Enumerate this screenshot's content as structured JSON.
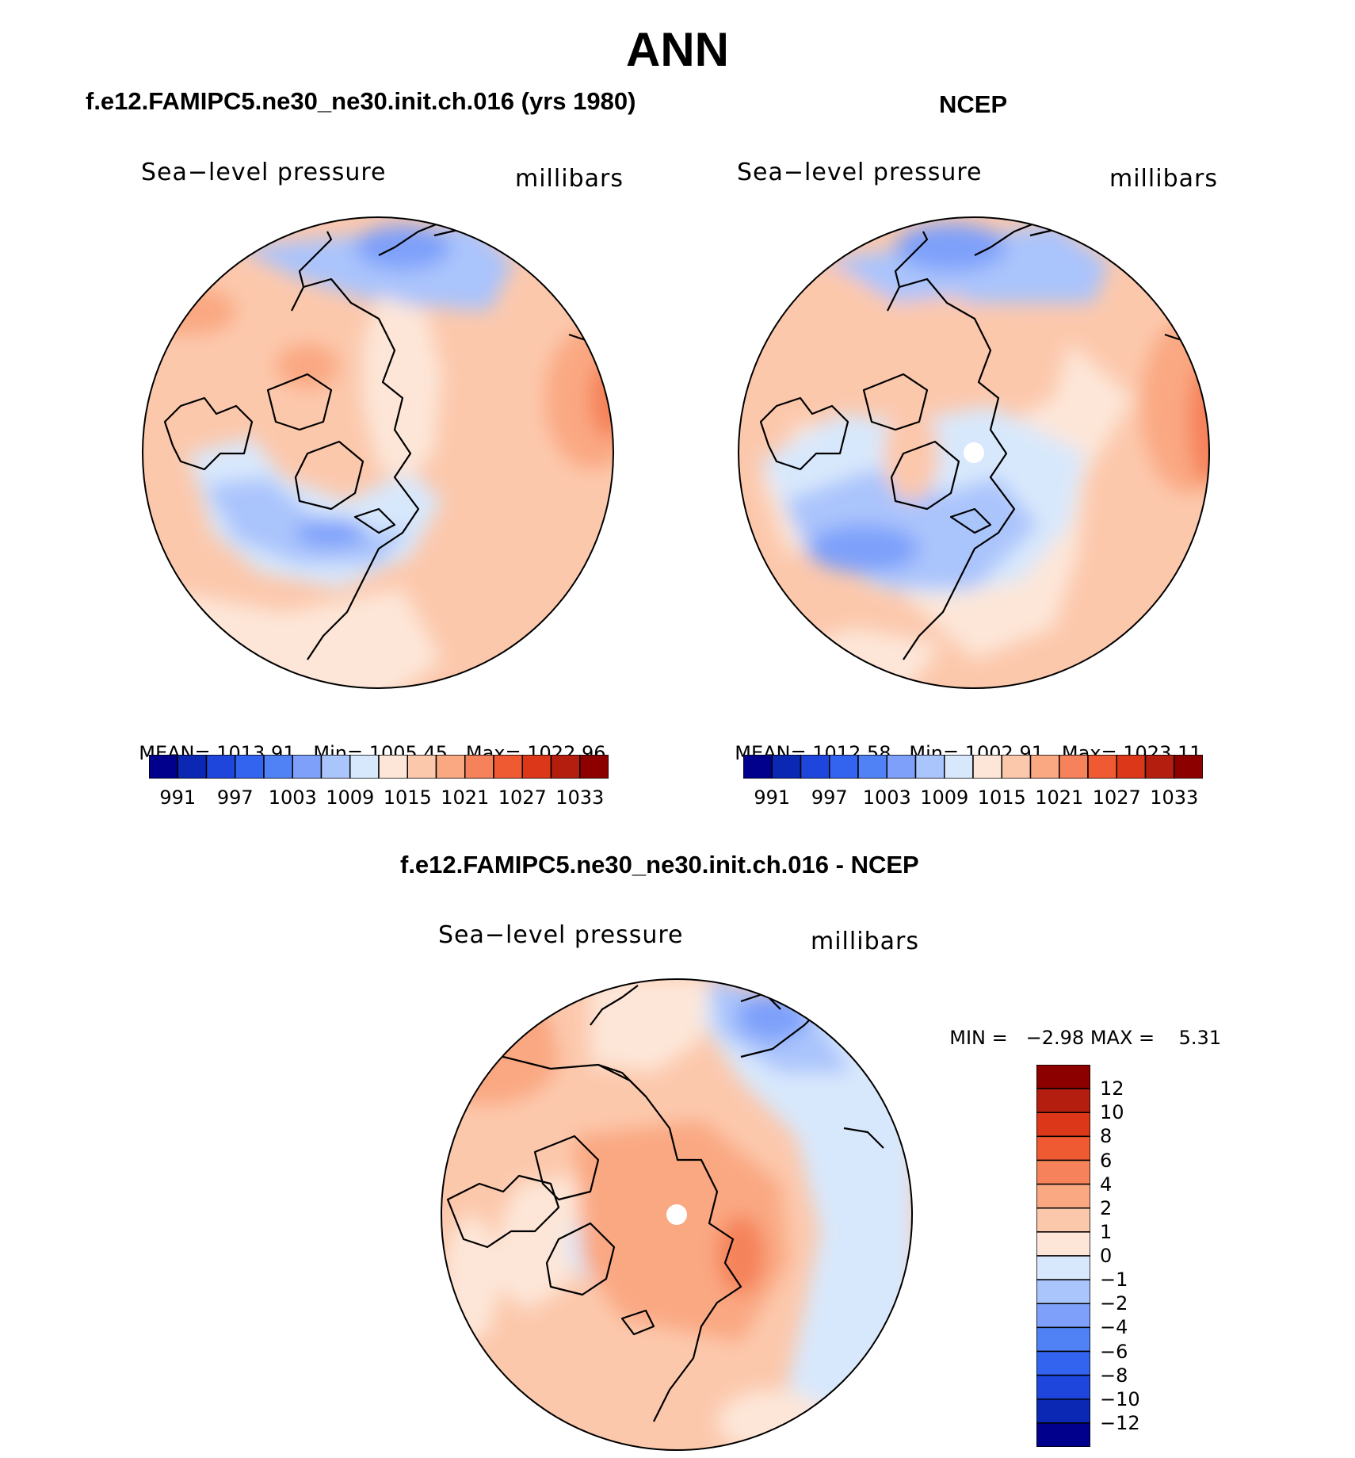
{
  "title": "ANN",
  "panels": [
    {
      "title": "f.e12.FAMIPC5.ne30_ne30.init.ch.016 (yrs 1980)",
      "variable": "Sea−level pressure",
      "units": "millibars",
      "stats": {
        "mean_label": "MEAN=",
        "mean": "1013.91",
        "min_label": "Min=",
        "min": "1005.45",
        "max_label": "Max=",
        "max": "1022.96"
      }
    },
    {
      "title": "NCEP",
      "variable": "Sea−level pressure",
      "units": "millibars",
      "stats": {
        "mean_label": "MEAN=",
        "mean": "1012.58",
        "min_label": "Min=",
        "min": "1002.91",
        "max_label": "Max=",
        "max": "1023.11"
      }
    },
    {
      "title": "f.e12.FAMIPC5.ne30_ne30.init.ch.016 - NCEP",
      "variable": "Sea−level pressure",
      "units": "millibars",
      "stats": {
        "min_label": "MIN =",
        "min": "−2.98",
        "max_label": "MAX =",
        "max": "5.31"
      }
    }
  ],
  "colorbars": {
    "absolute": {
      "colors": [
        "#00008c",
        "#0a28b4",
        "#1e46dc",
        "#3264f0",
        "#5082f5",
        "#7ea0fa",
        "#aac4fc",
        "#d8e8fc",
        "#fde6d8",
        "#fcc8ac",
        "#faa882",
        "#f5825a",
        "#f05a32",
        "#dc3719",
        "#b41e0f",
        "#8c0000"
      ],
      "labels": [
        "991",
        "997",
        "1003",
        "1009",
        "1015",
        "1021",
        "1027",
        "1033"
      ]
    },
    "difference": {
      "colors": [
        "#8c0000",
        "#b41e0f",
        "#dc3719",
        "#f05a32",
        "#f5825a",
        "#faa882",
        "#fcc8ac",
        "#fde6d8",
        "#d8e8fc",
        "#aac4fc",
        "#7ea0fa",
        "#5082f5",
        "#3264f0",
        "#1e46dc",
        "#0a28b4",
        "#00008c"
      ],
      "labels": [
        "12",
        "10",
        "8",
        "6",
        "4",
        "2",
        "1",
        "0",
        "−1",
        "−2",
        "−4",
        "−6",
        "−8",
        "−10",
        "−12"
      ]
    }
  }
}
